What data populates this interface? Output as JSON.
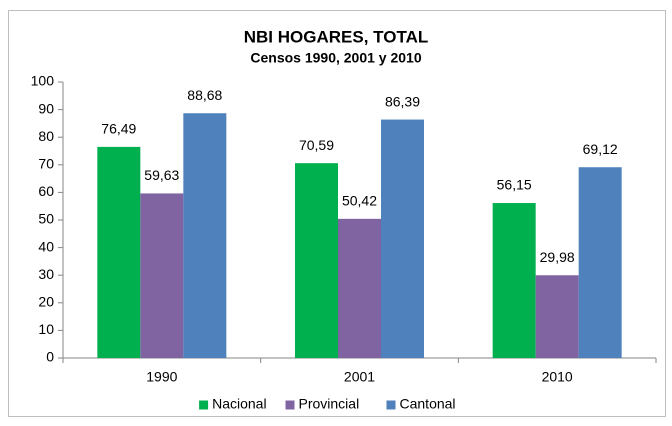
{
  "chart_data": {
    "type": "bar",
    "title": "NBI HOGARES, TOTAL",
    "subtitle": "Censos 1990, 2001 y 2010",
    "categories": [
      "1990",
      "2001",
      "2010"
    ],
    "series": [
      {
        "name": "Nacional",
        "color": "#00b04f",
        "values": [
          76.49,
          70.59,
          56.15
        ],
        "value_labels": [
          "76,49",
          "70,59",
          "56,15"
        ]
      },
      {
        "name": "Provincial",
        "color": "#8064a2",
        "values": [
          59.63,
          50.42,
          29.98
        ],
        "value_labels": [
          "59,63",
          "50,42",
          "29,98"
        ]
      },
      {
        "name": "Cantonal",
        "color": "#4f81bd",
        "values": [
          88.68,
          86.39,
          69.12
        ],
        "value_labels": [
          "88,68",
          "86,39",
          "69,12"
        ]
      }
    ],
    "ylim": [
      0,
      100
    ],
    "yticks": [
      0,
      10,
      20,
      30,
      40,
      50,
      60,
      70,
      80,
      90,
      100
    ],
    "grid": false,
    "legend": "bottom"
  }
}
